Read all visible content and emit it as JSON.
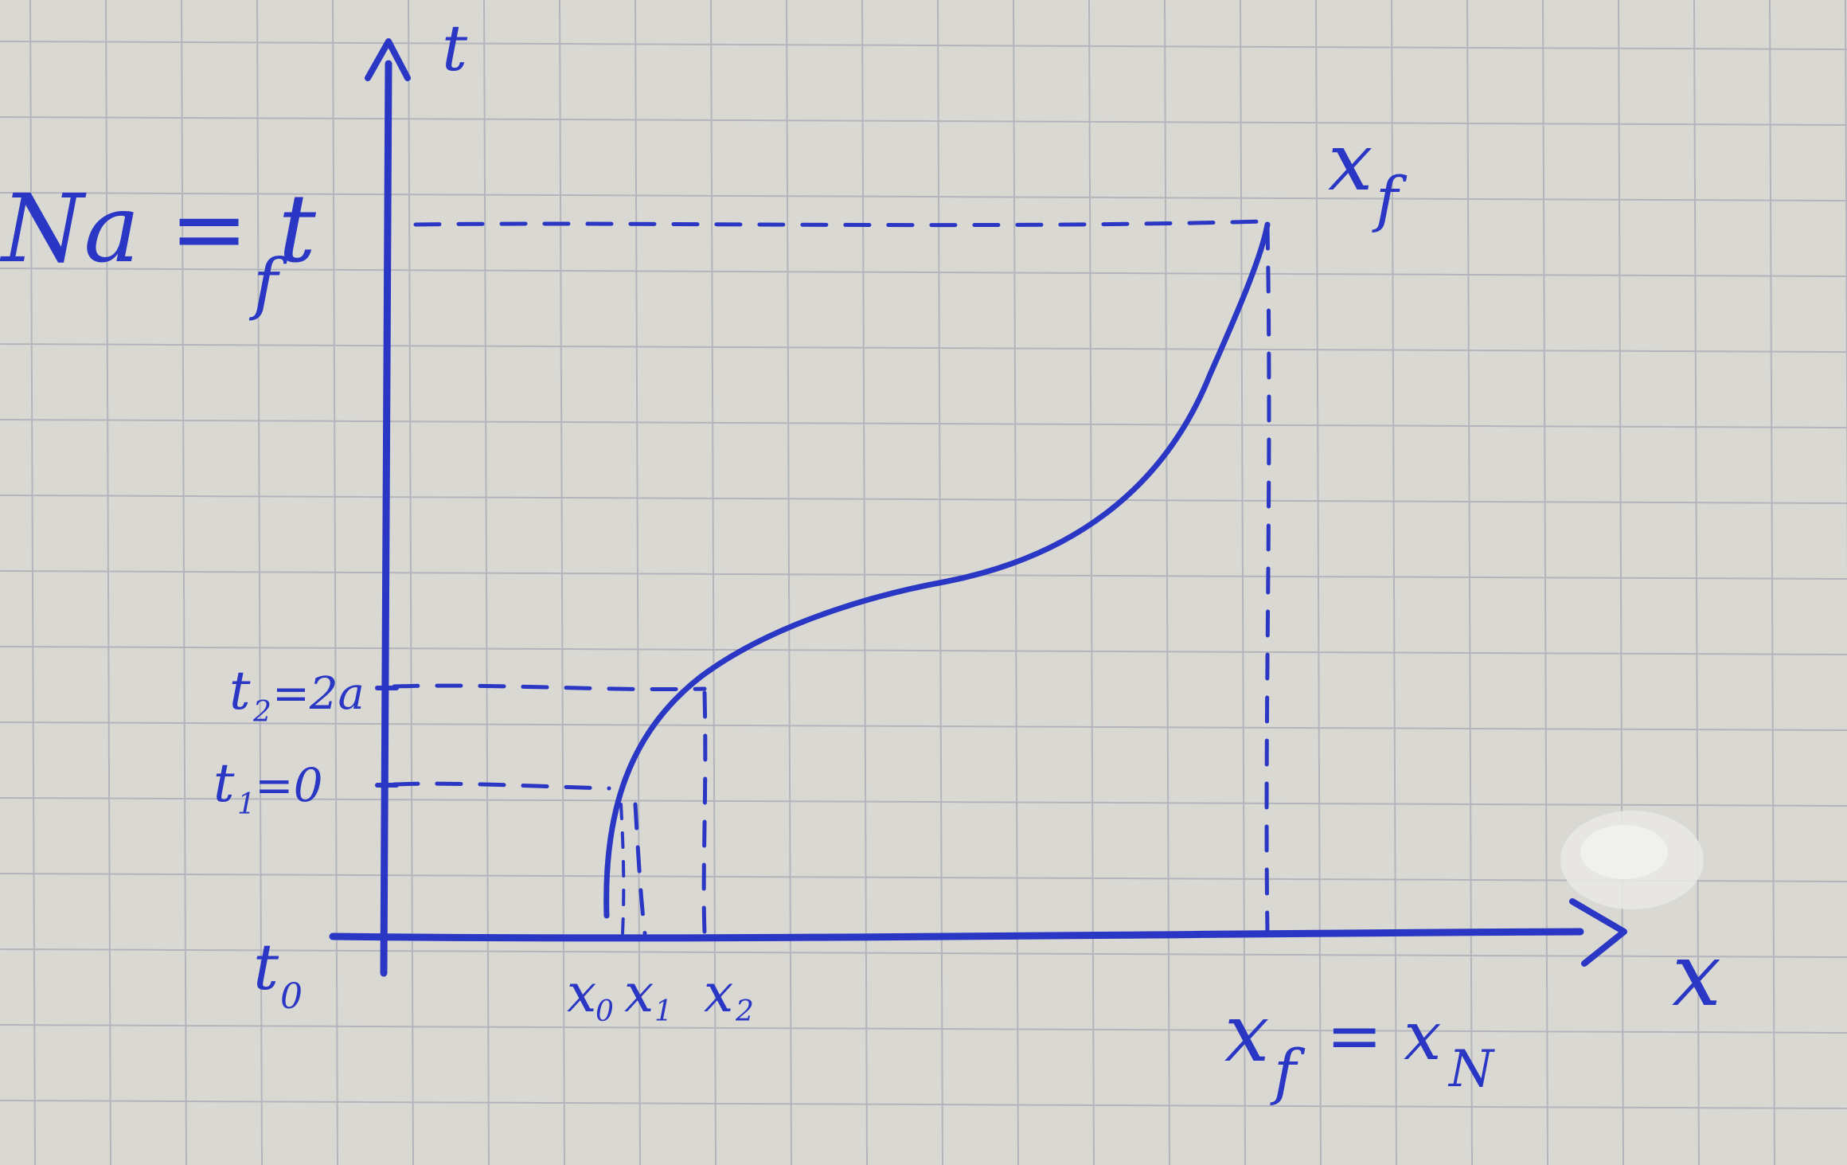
{
  "diagram": {
    "labels": {
      "t_axis": "t",
      "x_axis": "x",
      "t_f": "Na = t",
      "t_f_sub": "f",
      "t_2": "t",
      "t_2_sub": "2",
      "t_2_rest": "=2a",
      "t_1": "t",
      "t_1_sub": "1",
      "t_1_rest": "=0",
      "t_0": "t",
      "t_0_sub": "0",
      "x_0": "x",
      "x_0_sub": "0",
      "x_1": "x",
      "x_1_sub": "1",
      "x_2": "x",
      "x_2_sub": "2",
      "x_f_top": "x",
      "x_f_top_sub": "f",
      "x_f_bottom": "x",
      "x_f_bottom_sub": "f",
      "x_f_eq": "= x",
      "x_N_sub": "N"
    },
    "colors": {
      "ink": "#2a36c4",
      "paper": "#d9d8d3",
      "grid": "#b2b6bc"
    }
  }
}
